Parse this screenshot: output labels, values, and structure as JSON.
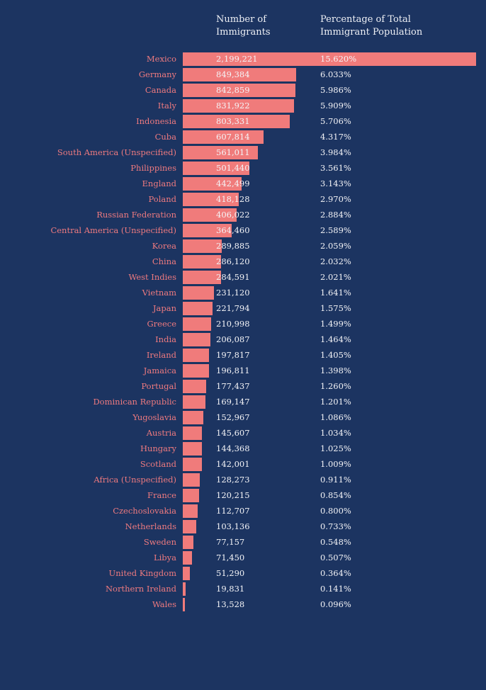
{
  "chart_data": {
    "type": "bar",
    "orientation": "horizontal",
    "column_headers": [
      "Number of\nImmigrants",
      "Percentage of Total\nImmigrant Population"
    ],
    "colors": {
      "background": "#1c3461",
      "bar": "#f07b7b",
      "label": "#ee7a7f",
      "value_text": "#f4f4f7"
    },
    "categories": [
      "Mexico",
      "Germany",
      "Canada",
      "Italy",
      "Indonesia",
      "Cuba",
      "South America (Unspecified)",
      "Philippines",
      "England",
      "Poland",
      "Russian Federation",
      "Central America (Unspecified)",
      "Korea",
      "China",
      "West Indies",
      "Vietnam",
      "Japan",
      "Greece",
      "India",
      "Ireland",
      "Jamaica",
      "Portugal",
      "Dominican Republic",
      "Yugoslavia",
      "Austria",
      "Hungary",
      "Scotland",
      "Africa (Unspecified)",
      "France",
      "Czechoslovakia",
      "Netherlands",
      "Sweden",
      "Libya",
      "United Kingdom",
      "Northern Ireland",
      "Wales"
    ],
    "values": [
      2199221,
      849384,
      842859,
      831922,
      803331,
      607814,
      561011,
      501440,
      442499,
      418128,
      406022,
      364460,
      289885,
      286120,
      284591,
      231120,
      221794,
      210998,
      206087,
      197817,
      196811,
      177437,
      169147,
      152967,
      145607,
      144368,
      142001,
      128273,
      120215,
      112707,
      103136,
      77157,
      71450,
      51290,
      19831,
      13528
    ],
    "value_labels": [
      "2,199,221",
      "849,384",
      "842,859",
      "831,922",
      "803,331",
      "607,814",
      "561,011",
      "501,440",
      "442,499",
      "418,128",
      "406,022",
      "364,460",
      "289,885",
      "286,120",
      "284,591",
      "231,120",
      "221,794",
      "210,998",
      "206,087",
      "197,817",
      "196,811",
      "177,437",
      "169,147",
      "152,967",
      "145,607",
      "144,368",
      "142,001",
      "128,273",
      "120,215",
      "112,707",
      "103,136",
      "77,157",
      "71,450",
      "51,290",
      "19,831",
      "13,528"
    ],
    "percentages": [
      "15.620%",
      "6.033%",
      "5.986%",
      "5.909%",
      "5.706%",
      "4.317%",
      "3.984%",
      "3.561%",
      "3.143%",
      "2.970%",
      "2.884%",
      "2.589%",
      "2.059%",
      "2.032%",
      "2.021%",
      "1.641%",
      "1.575%",
      "1.499%",
      "1.464%",
      "1.405%",
      "1.398%",
      "1.260%",
      "1.201%",
      "1.086%",
      "1.034%",
      "1.025%",
      "1.009%",
      "0.911%",
      "0.854%",
      "0.800%",
      "0.733%",
      "0.548%",
      "0.507%",
      "0.364%",
      "0.141%",
      "0.096%"
    ],
    "grid": false
  }
}
